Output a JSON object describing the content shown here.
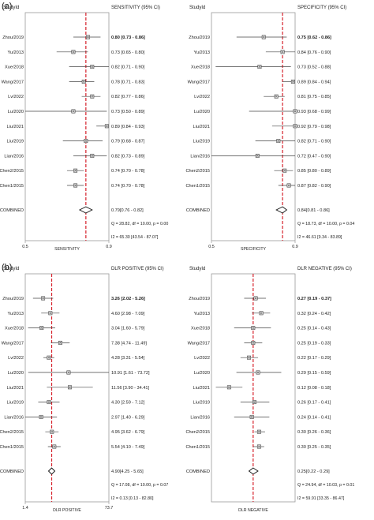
{
  "figure": {
    "panel_a_label": "(a)",
    "panel_b_label": "(b)"
  },
  "colors": {
    "reference_line": "#d6212b",
    "frame": "#9a9a9a",
    "marker": "#333333",
    "ci_line": "#444444"
  },
  "chart_data": [
    {
      "type": "forest",
      "id": "sensitivity",
      "study_header": "StudyId",
      "estimate_header": "SENSITIVITY (95% CI)",
      "xlabel": "SENSITIVITY",
      "scale": "linear",
      "xlim": [
        0.5,
        0.9
      ],
      "x_ticks": [
        0.5,
        0.9
      ],
      "x_tick_labels": [
        "0.5",
        "0.9"
      ],
      "reference_value": 0.79,
      "studies": [
        {
          "name": "Zhou/2019",
          "est": 0.8,
          "lo": 0.73,
          "hi": 0.86,
          "label": "0.80 [0.73 - 0.86]",
          "bold": true
        },
        {
          "name": "Yu/2013",
          "est": 0.73,
          "lo": 0.65,
          "hi": 0.8,
          "label": "0.73 [0.65 - 0.80]",
          "bold": false
        },
        {
          "name": "Xue/2018",
          "est": 0.82,
          "lo": 0.71,
          "hi": 0.9,
          "label": "0.82 [0.71 - 0.90]",
          "bold": false
        },
        {
          "name": "Wang/2017",
          "est": 0.78,
          "lo": 0.71,
          "hi": 0.83,
          "label": "0.78 [0.71 - 0.83]",
          "bold": false
        },
        {
          "name": "Lv/2022",
          "est": 0.82,
          "lo": 0.77,
          "hi": 0.86,
          "label": "0.82 [0.77 - 0.86]",
          "bold": false
        },
        {
          "name": "Lu/2020",
          "est": 0.73,
          "lo": 0.5,
          "hi": 0.89,
          "label": "0.73 [0.50 - 0.89]",
          "bold": false
        },
        {
          "name": "Liu/2021",
          "est": 0.89,
          "lo": 0.84,
          "hi": 0.93,
          "label": "0.89 [0.84 - 0.93]",
          "bold": false
        },
        {
          "name": "Liu/2019",
          "est": 0.79,
          "lo": 0.68,
          "hi": 0.87,
          "label": "0.79 [0.68 - 0.87]",
          "bold": false
        },
        {
          "name": "Lian/2016",
          "est": 0.82,
          "lo": 0.73,
          "hi": 0.89,
          "label": "0.82 [0.73 - 0.89]",
          "bold": false
        },
        {
          "name": "Chen2/2015",
          "est": 0.74,
          "lo": 0.7,
          "hi": 0.78,
          "label": "0.74 [0.70 - 0.78]",
          "bold": false
        },
        {
          "name": "Chen1/2015",
          "est": 0.74,
          "lo": 0.7,
          "hi": 0.78,
          "label": "0.74 [0.70 - 0.78]",
          "bold": false
        }
      ],
      "combined": {
        "name": "COMBINED",
        "est": 0.79,
        "lo": 0.76,
        "hi": 0.82,
        "label": "0.79[0.76 - 0.82]"
      },
      "stats": [
        "Q = 28.82, df = 10.00, p = 0.00",
        "I2 = 65.30 [43.54 - 87.07]"
      ]
    },
    {
      "type": "forest",
      "id": "specificity",
      "study_header": "StudyId",
      "estimate_header": "SPECIFICITY (95% CI)",
      "xlabel": "SPECIFICITY",
      "scale": "linear",
      "xlim": [
        0.5,
        0.9
      ],
      "x_ticks": [
        0.5,
        0.9
      ],
      "x_tick_labels": [
        "0.5",
        "0.9"
      ],
      "reference_value": 0.84,
      "studies": [
        {
          "name": "Zhou/2019",
          "est": 0.75,
          "lo": 0.62,
          "hi": 0.86,
          "label": "0.75 [0.62 - 0.86]",
          "bold": true
        },
        {
          "name": "Yu/2013",
          "est": 0.84,
          "lo": 0.76,
          "hi": 0.9,
          "label": "0.84 [0.76 - 0.90]",
          "bold": false
        },
        {
          "name": "Xue/2018",
          "est": 0.73,
          "lo": 0.52,
          "hi": 0.88,
          "label": "0.73 [0.52 - 0.88]",
          "bold": false
        },
        {
          "name": "Wang/2017",
          "est": 0.89,
          "lo": 0.84,
          "hi": 0.94,
          "label": "0.89 [0.84 - 0.94]",
          "bold": false
        },
        {
          "name": "Lv/2022",
          "est": 0.81,
          "lo": 0.75,
          "hi": 0.85,
          "label": "0.81 [0.75 - 0.85]",
          "bold": false
        },
        {
          "name": "Lu/2020",
          "est": 0.93,
          "lo": 0.68,
          "hi": 0.99,
          "label": "0.93 [0.68 - 0.99]",
          "bold": false
        },
        {
          "name": "Liu/2021",
          "est": 0.92,
          "lo": 0.79,
          "hi": 0.98,
          "label": "0.92 [0.79 - 0.98]",
          "bold": false
        },
        {
          "name": "Liu/2019",
          "est": 0.82,
          "lo": 0.71,
          "hi": 0.9,
          "label": "0.82 [0.71 - 0.90]",
          "bold": false
        },
        {
          "name": "Lian/2016",
          "est": 0.72,
          "lo": 0.47,
          "hi": 0.9,
          "label": "0.72 [0.47 - 0.90]",
          "bold": false
        },
        {
          "name": "Chen2/2015",
          "est": 0.85,
          "lo": 0.8,
          "hi": 0.89,
          "label": "0.85 [0.80 - 0.89]",
          "bold": false
        },
        {
          "name": "Chen1/2015",
          "est": 0.87,
          "lo": 0.82,
          "hi": 0.9,
          "label": "0.87 [0.82 - 0.90]",
          "bold": false
        }
      ],
      "combined": {
        "name": "COMBINED",
        "est": 0.84,
        "lo": 0.81,
        "hi": 0.86,
        "label": "0.84[0.81 - 0.86]"
      },
      "stats": [
        "Q = 18.73, df = 10.00, p = 0.04",
        "I2 = 46.61 [9.34 - 83.89]"
      ]
    },
    {
      "type": "forest",
      "id": "dlr_positive",
      "study_header": "StudyId",
      "estimate_header": "DLR POSITIVE (95% CI)",
      "xlabel": "DLR POSITIVE",
      "scale": "log",
      "xlim": [
        1.4,
        73.7
      ],
      "x_ticks": [
        1.4,
        73.7
      ],
      "x_tick_labels": [
        "1.4",
        "73.7"
      ],
      "reference_value": 4.9,
      "studies": [
        {
          "name": "Zhou/2019",
          "est": 3.26,
          "lo": 2.02,
          "hi": 5.26,
          "label": "3.26 [2.02 - 5.26]",
          "bold": true
        },
        {
          "name": "Yu/2013",
          "est": 4.6,
          "lo": 2.98,
          "hi": 7.09,
          "label": "4.60 [2.98 - 7.09]",
          "bold": false
        },
        {
          "name": "Xue/2018",
          "est": 3.04,
          "lo": 1.6,
          "hi": 5.79,
          "label": "3.04 [1.60 - 5.79]",
          "bold": false
        },
        {
          "name": "Wang/2017",
          "est": 7.38,
          "lo": 4.74,
          "hi": 11.49,
          "label": "7.38 [4.74 - 11.49]",
          "bold": false
        },
        {
          "name": "Lv/2022",
          "est": 4.28,
          "lo": 3.31,
          "hi": 5.54,
          "label": "4.28 [3.31 - 5.54]",
          "bold": false
        },
        {
          "name": "Lu/2020",
          "est": 10.91,
          "lo": 1.61,
          "hi": 73.72,
          "label": "10.91 [1.61 - 73.72]",
          "bold": false
        },
        {
          "name": "Liu/2021",
          "est": 11.56,
          "lo": 3.9,
          "hi": 34.41,
          "label": "11.56 [3.90 - 34.41]",
          "bold": false
        },
        {
          "name": "Liu/2019",
          "est": 4.3,
          "lo": 2.59,
          "hi": 7.12,
          "label": "4.30 [2.59 - 7.12]",
          "bold": false
        },
        {
          "name": "Lian/2016",
          "est": 2.97,
          "lo": 1.4,
          "hi": 6.29,
          "label": "2.97 [1.40 - 6.29]",
          "bold": false
        },
        {
          "name": "Chen2/2015",
          "est": 4.95,
          "lo": 3.62,
          "hi": 6.79,
          "label": "4.95 [3.62 - 6.79]",
          "bold": false
        },
        {
          "name": "Chen1/2015",
          "est": 5.54,
          "lo": 4.1,
          "hi": 7.49,
          "label": "5.54 [4.10 - 7.49]",
          "bold": false
        }
      ],
      "combined": {
        "name": "COMBINED",
        "est": 4.9,
        "lo": 4.25,
        "hi": 5.65,
        "label": "4.90[4.25 - 5.65]"
      },
      "stats": [
        "Q = 17.08, df = 10.00, p = 0.07",
        "I2 = 0.13 [0.13 - 82.80]"
      ]
    },
    {
      "type": "forest",
      "id": "dlr_negative",
      "study_header": "StudyId",
      "estimate_header": "DLR NEGATIVE (95% CI)",
      "xlabel": "DLR NEGATIVE",
      "scale": "log",
      "xlim": [
        0.07,
        0.9
      ],
      "x_ticks": [],
      "x_tick_labels": [],
      "reference_value": 0.25,
      "studies": [
        {
          "name": "Zhou/2019",
          "est": 0.27,
          "lo": 0.19,
          "hi": 0.37,
          "label": "0.27 [0.19 - 0.37]",
          "bold": true
        },
        {
          "name": "Yu/2013",
          "est": 0.32,
          "lo": 0.24,
          "hi": 0.42,
          "label": "0.32 [0.24 - 0.42]",
          "bold": false
        },
        {
          "name": "Xue/2018",
          "est": 0.25,
          "lo": 0.14,
          "hi": 0.43,
          "label": "0.25 [0.14 - 0.43]",
          "bold": false
        },
        {
          "name": "Wang/2017",
          "est": 0.25,
          "lo": 0.19,
          "hi": 0.33,
          "label": "0.25 [0.19 - 0.33]",
          "bold": false
        },
        {
          "name": "Lv/2022",
          "est": 0.22,
          "lo": 0.17,
          "hi": 0.29,
          "label": "0.22 [0.17 - 0.29]",
          "bold": false
        },
        {
          "name": "Lu/2020",
          "est": 0.29,
          "lo": 0.15,
          "hi": 0.59,
          "label": "0.29 [0.15 - 0.59]",
          "bold": false
        },
        {
          "name": "Liu/2021",
          "est": 0.12,
          "lo": 0.08,
          "hi": 0.18,
          "label": "0.12 [0.08 - 0.18]",
          "bold": false
        },
        {
          "name": "Liu/2019",
          "est": 0.26,
          "lo": 0.17,
          "hi": 0.41,
          "label": "0.26 [0.17 - 0.41]",
          "bold": false
        },
        {
          "name": "Lian/2016",
          "est": 0.24,
          "lo": 0.14,
          "hi": 0.41,
          "label": "0.24 [0.14 - 0.41]",
          "bold": false
        },
        {
          "name": "Chen2/2015",
          "est": 0.3,
          "lo": 0.26,
          "hi": 0.36,
          "label": "0.30 [0.26 - 0.36]",
          "bold": false
        },
        {
          "name": "Chen1/2015",
          "est": 0.3,
          "lo": 0.25,
          "hi": 0.35,
          "label": "0.30 [0.25 - 0.35]",
          "bold": false
        }
      ],
      "combined": {
        "name": "COMBINED",
        "est": 0.25,
        "lo": 0.22,
        "hi": 0.29,
        "label": "0.25[0.22 - 0.29]"
      },
      "stats": [
        "Q = 24.94, df = 10.03, p = 0.01",
        "I2 = 59.91 [33.35 - 86.47]"
      ]
    }
  ]
}
